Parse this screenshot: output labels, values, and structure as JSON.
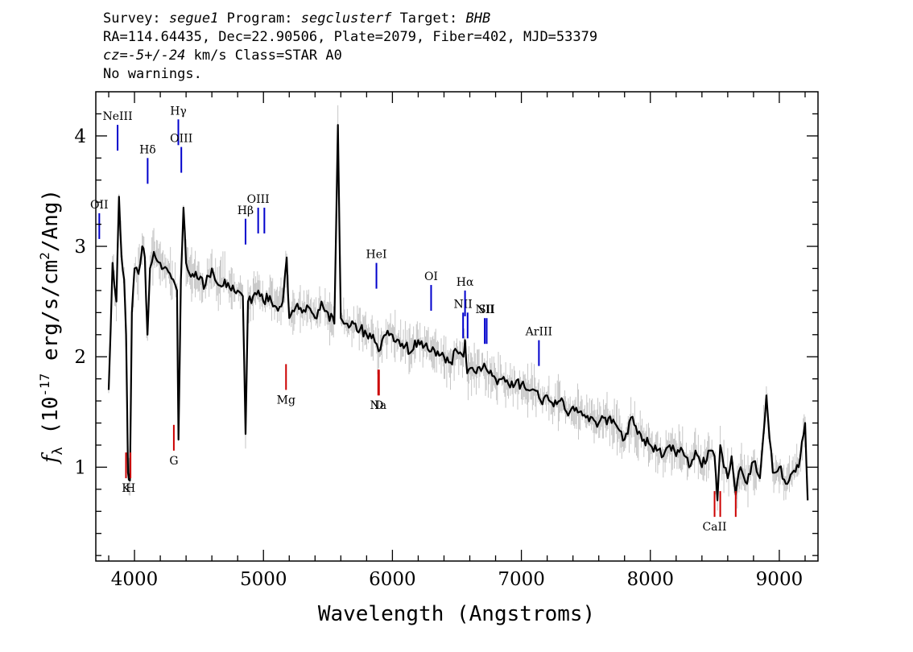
{
  "header": {
    "survey_label": "Survey:",
    "survey": "segue1",
    "program_label": "Program:",
    "program": "segclusterf",
    "target_label": "Target:",
    "target": "BHB",
    "line2": "RA=114.64435, Dec=22.90506, Plate=2079, Fiber=402, MJD=53379",
    "cz_symbol": "cz",
    "cz_eq": "=",
    "cz_value": "-5+/-24",
    "cz_rest": " km/s Class=STAR A0",
    "line4": "No warnings."
  },
  "chart_data": {
    "type": "line",
    "xlabel": "Wavelength (Angstroms)",
    "ylabel": "f_λ (10^-17 erg/s/cm^2/Ang)",
    "ylabel_parts": {
      "f": "f",
      "lambda": "λ",
      "pre": " (10",
      "exp1": "-17",
      "mid": " erg/s/cm",
      "exp2": "2",
      "post": "/Ang)"
    },
    "xlim": [
      3700,
      9300
    ],
    "ylim": [
      0.15,
      4.4
    ],
    "xticks": [
      4000,
      5000,
      6000,
      7000,
      8000,
      9000
    ],
    "yticks": [
      1,
      2,
      3,
      4
    ],
    "grid": false,
    "series": [
      {
        "style": "spectrum",
        "color": "#000000",
        "x": [
          3800,
          3830,
          3860,
          3880,
          3900,
          3920,
          3935,
          3950,
          3965,
          3980,
          4000,
          4030,
          4060,
          4080,
          4101,
          4120,
          4150,
          4200,
          4250,
          4300,
          4330,
          4341,
          4360,
          4380,
          4400,
          4450,
          4500,
          4550,
          4600,
          4650,
          4700,
          4750,
          4800,
          4840,
          4861,
          4880,
          4920,
          4960,
          5000,
          5050,
          5100,
          5150,
          5180,
          5200,
          5250,
          5300,
          5350,
          5400,
          5450,
          5500,
          5550,
          5577,
          5600,
          5650,
          5700,
          5750,
          5800,
          5850,
          5893,
          5920,
          5950,
          6000,
          6050,
          6100,
          6150,
          6200,
          6250,
          6300,
          6350,
          6400,
          6450,
          6500,
          6550,
          6563,
          6580,
          6620,
          6650,
          6700,
          6750,
          6800,
          6850,
          6900,
          6950,
          7000,
          7050,
          7100,
          7150,
          7200,
          7250,
          7300,
          7350,
          7400,
          7450,
          7500,
          7550,
          7600,
          7650,
          7700,
          7750,
          7800,
          7850,
          7900,
          7950,
          8000,
          8050,
          8100,
          8150,
          8200,
          8250,
          8300,
          8350,
          8400,
          8450,
          8498,
          8520,
          8542,
          8570,
          8600,
          8630,
          8662,
          8700,
          8750,
          8800,
          8850,
          8900,
          8950,
          9000,
          9050,
          9100,
          9150,
          9200,
          9220
        ],
        "y": [
          1.7,
          2.85,
          2.5,
          3.45,
          2.9,
          2.7,
          2.2,
          0.95,
          0.88,
          2.4,
          2.8,
          2.75,
          3.0,
          2.9,
          2.2,
          2.8,
          2.95,
          2.85,
          2.8,
          2.7,
          2.6,
          1.25,
          2.7,
          3.35,
          2.85,
          2.75,
          2.7,
          2.65,
          2.8,
          2.65,
          2.7,
          2.6,
          2.6,
          2.55,
          1.3,
          2.5,
          2.55,
          2.6,
          2.5,
          2.55,
          2.45,
          2.5,
          2.9,
          2.35,
          2.45,
          2.4,
          2.45,
          2.35,
          2.5,
          2.4,
          2.3,
          4.1,
          2.35,
          2.3,
          2.3,
          2.25,
          2.2,
          2.2,
          2.05,
          2.15,
          2.2,
          2.2,
          2.15,
          2.1,
          2.05,
          2.15,
          2.1,
          2.05,
          2.05,
          2.0,
          1.95,
          2.05,
          2.0,
          2.15,
          1.85,
          1.9,
          1.85,
          1.9,
          1.85,
          1.8,
          1.8,
          1.75,
          1.75,
          1.75,
          1.7,
          1.7,
          1.6,
          1.65,
          1.55,
          1.6,
          1.5,
          1.55,
          1.5,
          1.45,
          1.45,
          1.4,
          1.45,
          1.4,
          1.35,
          1.25,
          1.45,
          1.3,
          1.25,
          1.2,
          1.15,
          1.1,
          1.2,
          1.1,
          1.15,
          1.0,
          1.15,
          1.0,
          1.15,
          1.1,
          0.7,
          1.2,
          1.0,
          0.9,
          1.1,
          0.75,
          1.0,
          0.85,
          1.05,
          0.9,
          1.65,
          0.95,
          1.0,
          0.85,
          0.95,
          1.0,
          1.4,
          0.7
        ]
      }
    ],
    "emission_lines": [
      {
        "label": "OII",
        "x": 3727,
        "y": 3.3,
        "color": "#0000cc"
      },
      {
        "label": "NeIII",
        "x": 3869,
        "y": 4.1,
        "color": "#0000cc"
      },
      {
        "label": "Hδ",
        "x": 4102,
        "y": 3.8,
        "color": "#0000cc"
      },
      {
        "label": "Hγ",
        "x": 4340,
        "y": 4.15,
        "color": "#0000cc"
      },
      {
        "label": "OIII",
        "x": 4363,
        "y": 3.9,
        "color": "#0000cc"
      },
      {
        "label": "Hβ",
        "x": 4861,
        "y": 3.25,
        "color": "#0000cc"
      },
      {
        "label": "OIII",
        "x": 4959,
        "y": 3.35,
        "color": "#0000cc"
      },
      {
        "label": "",
        "x": 5007,
        "y": 3.35,
        "color": "#0000cc"
      },
      {
        "label": "HeI",
        "x": 5876,
        "y": 2.85,
        "color": "#0000cc"
      },
      {
        "label": "OI",
        "x": 6300,
        "y": 2.65,
        "color": "#0000cc"
      },
      {
        "label": "NII",
        "x": 6548,
        "y": 2.4,
        "color": "#0000cc"
      },
      {
        "label": "Hα",
        "x": 6563,
        "y": 2.6,
        "color": "#0000cc"
      },
      {
        "label": "",
        "x": 6583,
        "y": 2.4,
        "color": "#0000cc"
      },
      {
        "label": "NII",
        "x": 6716,
        "y": 2.35,
        "color": "#0000cc"
      },
      {
        "label": "SII",
        "x": 6731,
        "y": 2.35,
        "color": "#0000cc"
      },
      {
        "label": "ArIII",
        "x": 7136,
        "y": 2.15,
        "color": "#0000cc"
      }
    ],
    "absorption_lines": [
      {
        "label": "K",
        "x": 3934,
        "y": 0.9,
        "color": "#cc0000"
      },
      {
        "label": "H",
        "x": 3969,
        "y": 0.9,
        "color": "#cc0000"
      },
      {
        "label": "G",
        "x": 4305,
        "y": 1.15,
        "color": "#cc0000"
      },
      {
        "label": "Mg",
        "x": 5175,
        "y": 1.7,
        "color": "#cc0000"
      },
      {
        "label": "Na",
        "x": 5890,
        "y": 1.65,
        "color": "#cc0000"
      },
      {
        "label": "D",
        "x": 5896,
        "y": 1.65,
        "color": "#cc0000"
      },
      {
        "label": "CaII",
        "x": 8498,
        "y": 0.55,
        "color": "#cc0000"
      },
      {
        "label": "",
        "x": 8542,
        "y": 0.55,
        "color": "#cc0000"
      },
      {
        "label": "",
        "x": 8662,
        "y": 0.55,
        "color": "#cc0000"
      }
    ],
    "noise_color": "#c0c0c0"
  }
}
